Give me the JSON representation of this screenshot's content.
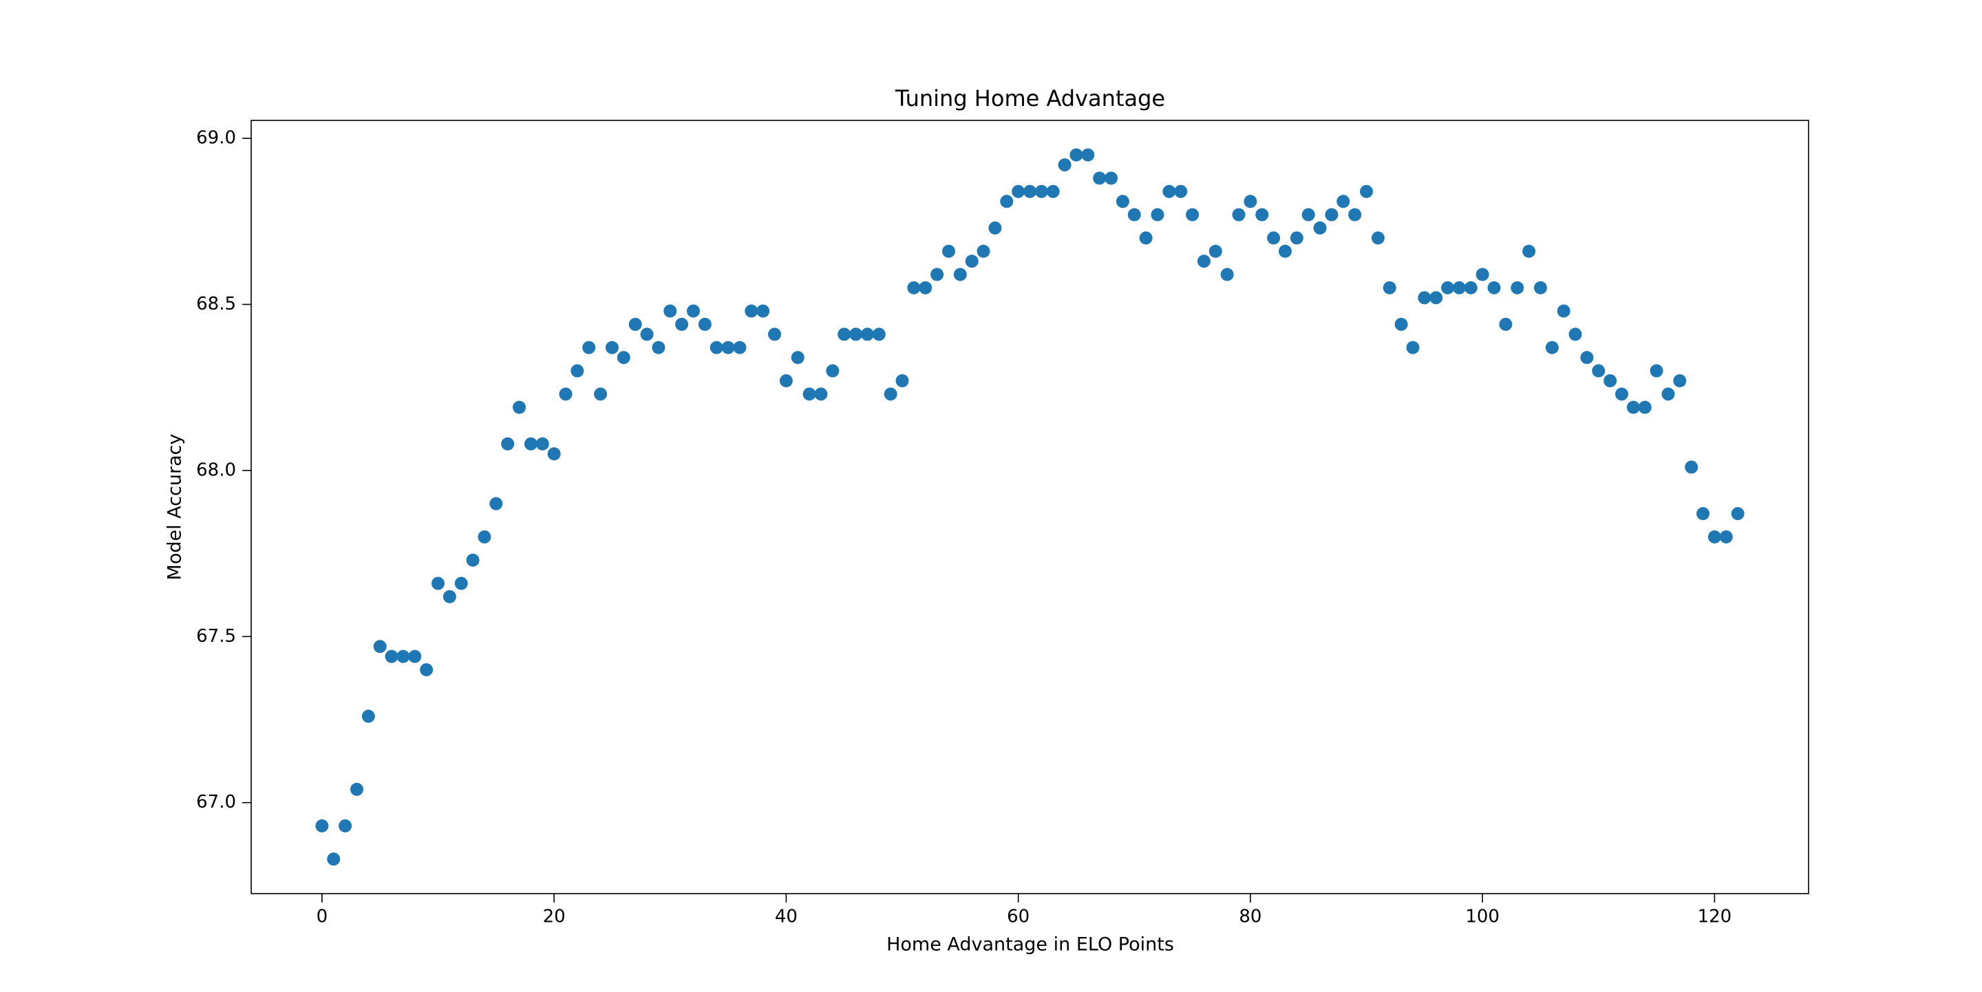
{
  "chart_data": {
    "type": "scatter",
    "title": "Tuning Home Advantage",
    "x_label": "Home Advantage in ELO Points",
    "y_label": "Model Accuracy",
    "color": "#1f77b4",
    "x": [
      0,
      1,
      2,
      3,
      4,
      5,
      6,
      7,
      8,
      9,
      10,
      11,
      12,
      13,
      14,
      15,
      16,
      17,
      18,
      19,
      20,
      21,
      22,
      23,
      24,
      25,
      26,
      27,
      28,
      29,
      30,
      31,
      32,
      33,
      34,
      35,
      36,
      37,
      38,
      39,
      40,
      41,
      42,
      43,
      44,
      45,
      46,
      47,
      48,
      49,
      50,
      51,
      52,
      53,
      54,
      55,
      56,
      57,
      58,
      59,
      60,
      61,
      62,
      63,
      64,
      65,
      66,
      67,
      68,
      69,
      70,
      71,
      72,
      73,
      74,
      75,
      76,
      77,
      78,
      79,
      80,
      81,
      82,
      83,
      84,
      85,
      86,
      87,
      88,
      89,
      90,
      91,
      92,
      93,
      94,
      95,
      96,
      97,
      98,
      99,
      100,
      101,
      102,
      103,
      104,
      105,
      106,
      107,
      108,
      109,
      110,
      111,
      112,
      113,
      114,
      115,
      116,
      117,
      118,
      119,
      120,
      121,
      122
    ],
    "values": [
      66.93,
      66.83,
      66.93,
      67.04,
      67.26,
      67.47,
      67.44,
      67.44,
      67.44,
      67.4,
      67.66,
      67.62,
      67.66,
      67.73,
      67.8,
      67.9,
      68.08,
      68.19,
      68.08,
      68.08,
      68.05,
      68.23,
      68.3,
      68.37,
      68.23,
      68.37,
      68.34,
      68.44,
      68.41,
      68.37,
      68.48,
      68.44,
      68.48,
      68.44,
      68.37,
      68.37,
      68.37,
      68.48,
      68.48,
      68.41,
      68.27,
      68.34,
      68.23,
      68.23,
      68.3,
      68.41,
      68.41,
      68.41,
      68.41,
      68.23,
      68.27,
      68.55,
      68.55,
      68.59,
      68.66,
      68.59,
      68.63,
      68.66,
      68.73,
      68.81,
      68.84,
      68.84,
      68.84,
      68.84,
      68.92,
      68.95,
      68.95,
      68.88,
      68.88,
      68.81,
      68.77,
      68.7,
      68.77,
      68.84,
      68.84,
      68.77,
      68.63,
      68.66,
      68.59,
      68.77,
      68.81,
      68.77,
      68.7,
      68.66,
      68.7,
      68.77,
      68.73,
      68.77,
      68.81,
      68.77,
      68.84,
      68.7,
      68.55,
      68.44,
      68.37,
      68.52,
      68.52,
      68.55,
      68.55,
      68.55,
      68.59,
      68.55,
      68.44,
      68.55,
      68.66,
      68.55,
      68.37,
      68.48,
      68.41,
      68.34,
      68.3,
      68.27,
      68.23,
      68.19,
      68.19,
      68.3,
      68.23,
      68.27,
      68.01,
      67.87,
      67.8,
      67.8,
      67.87
    ],
    "xlim": [
      -6.1,
      128.1
    ],
    "ylim": [
      66.726,
      69.054
    ],
    "xticks": [
      0,
      20,
      40,
      60,
      80,
      100,
      120
    ],
    "yticks": [
      {
        "value": 67,
        "label": "67.0"
      },
      {
        "value": 67.5,
        "label": "67.5"
      },
      {
        "value": 68,
        "label": "68.0"
      },
      {
        "value": 68.5,
        "label": "68.5"
      },
      {
        "value": 69,
        "label": "69.0"
      }
    ],
    "grid": false
  }
}
